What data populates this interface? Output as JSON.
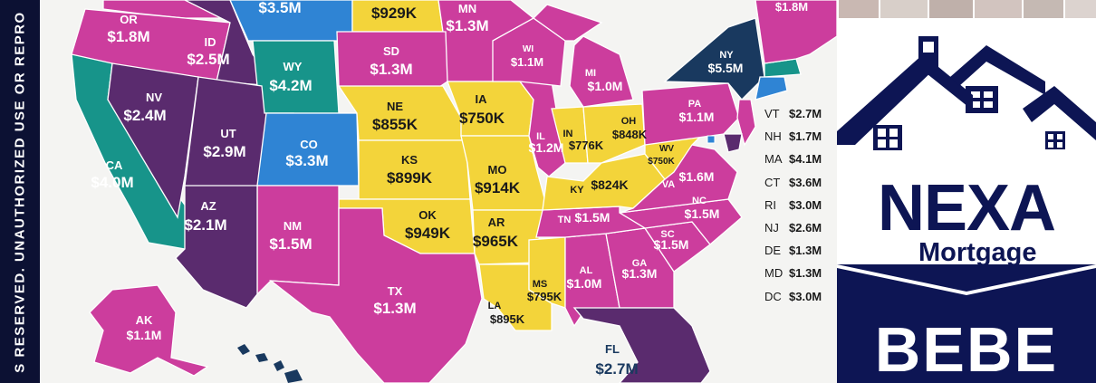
{
  "sidebar": {
    "vertical_text": "S RESERVED. UNAUTHORIZED USE OR REPRO"
  },
  "colors": {
    "magenta": "#cc3d9d",
    "purple": "#5a2b6e",
    "teal": "#17948a",
    "blue": "#2f84d4",
    "yellow": "#f3d43a",
    "navy": "#19395f",
    "brand_navy": "#0d1554"
  },
  "map": {
    "states": [
      {
        "abbr": "OR",
        "value": "$1.8M"
      },
      {
        "abbr": "ID",
        "value": "$2.5M"
      },
      {
        "abbr": "",
        "value": "$3.5M"
      },
      {
        "abbr": "",
        "value": "$929K"
      },
      {
        "abbr": "MN",
        "value": "$1.3M"
      },
      {
        "abbr": "",
        "value": "$1.8M"
      },
      {
        "abbr": "WY",
        "value": "$4.2M"
      },
      {
        "abbr": "SD",
        "value": "$1.3M"
      },
      {
        "abbr": "WI",
        "value": "$1.1M"
      },
      {
        "abbr": "MI",
        "value": "$1.0M"
      },
      {
        "abbr": "NY",
        "value": "$5.5M"
      },
      {
        "abbr": "NV",
        "value": "$2.4M"
      },
      {
        "abbr": "NE",
        "value": "$855K"
      },
      {
        "abbr": "IA",
        "value": "$750K"
      },
      {
        "abbr": "PA",
        "value": "$1.1M"
      },
      {
        "abbr": "UT",
        "value": "$2.9M"
      },
      {
        "abbr": "CO",
        "value": "$3.3M"
      },
      {
        "abbr": "IL",
        "value": "$1.2M"
      },
      {
        "abbr": "IN",
        "value": "$776K"
      },
      {
        "abbr": "OH",
        "value": "$848K"
      },
      {
        "abbr": "WV",
        "value": "$750K"
      },
      {
        "abbr": "CA",
        "value": "$4.0M"
      },
      {
        "abbr": "KS",
        "value": "$899K"
      },
      {
        "abbr": "MO",
        "value": "$914K"
      },
      {
        "abbr": "KY",
        "value": "$824K"
      },
      {
        "abbr": "VA",
        "value": "$1.6M"
      },
      {
        "abbr": "AZ",
        "value": "$2.1M"
      },
      {
        "abbr": "OK",
        "value": "$949K"
      },
      {
        "abbr": "AR",
        "value": "$965K"
      },
      {
        "abbr": "TN",
        "value": "$1.5M"
      },
      {
        "abbr": "NC",
        "value": "$1.5M"
      },
      {
        "abbr": "NM",
        "value": "$1.5M"
      },
      {
        "abbr": "SC",
        "value": "$1.5M"
      },
      {
        "abbr": "GA",
        "value": "$1.3M"
      },
      {
        "abbr": "AL",
        "value": "$1.0M"
      },
      {
        "abbr": "MS",
        "value": "$795K"
      },
      {
        "abbr": "TX",
        "value": "$1.3M"
      },
      {
        "abbr": "LA",
        "value": "$895K"
      },
      {
        "abbr": "AK",
        "value": "$1.1M"
      },
      {
        "abbr": "FL",
        "value": "$2.7M"
      }
    ],
    "side_list": [
      {
        "abbr": "VT",
        "value": "$2.7M"
      },
      {
        "abbr": "NH",
        "value": "$1.7M"
      },
      {
        "abbr": "MA",
        "value": "$4.1M"
      },
      {
        "abbr": "CT",
        "value": "$3.6M"
      },
      {
        "abbr": "RI",
        "value": "$3.0M"
      },
      {
        "abbr": "NJ",
        "value": "$2.6M"
      },
      {
        "abbr": "DE",
        "value": "$1.3M"
      },
      {
        "abbr": "MD",
        "value": "$1.3M"
      },
      {
        "abbr": "DC",
        "value": "$3.0M"
      }
    ]
  },
  "brand": {
    "logo_icon": "house-roof-icon",
    "name": "NEXA",
    "sub": "Mortgage",
    "bottom_text": "BEBE"
  }
}
